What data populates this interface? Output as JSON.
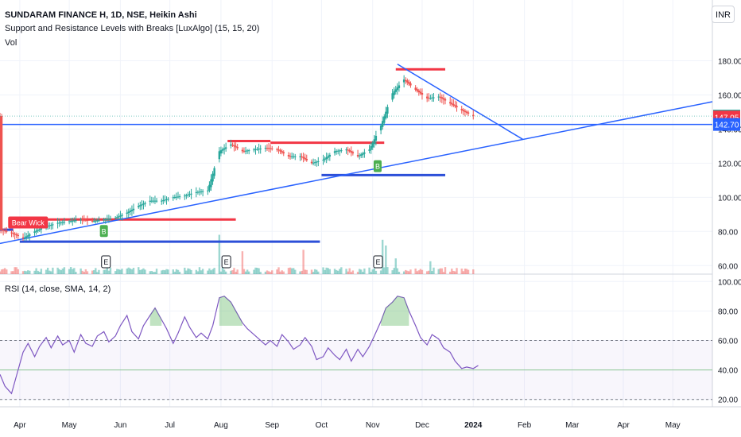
{
  "header": {
    "title": "SUNDARAM FINANCE H, 1D, NSE, Heikin Ashi",
    "indicator": "Support and Resistance Levels with Breaks [LuxAlgo] (15, 15, 20)",
    "volume": "Vol",
    "currency": "INR"
  },
  "rsi_panel": {
    "label": "RSI (14, close, SMA, 14, 2)"
  },
  "colors": {
    "up": "#26a69a",
    "down": "#ef5350",
    "trend": "#2962ff",
    "resistance": "#f23645",
    "support": "#2c4fd8",
    "rsi": "#7e57c2"
  },
  "chart_data": [
    {
      "type": "candlestick",
      "title": "SUNDARAM FINANCE H, 1D, NSE, Heikin Ashi",
      "ylim": [
        55,
        190
      ],
      "xlim": [
        "2023-03-20",
        "2024-05-25"
      ],
      "y_ticks": [
        "60.00",
        "80.00",
        "100.00",
        "120.00",
        "140.00",
        "160.00",
        "180.00"
      ],
      "x_ticks": [
        {
          "date": "2023-04-01",
          "label": "Apr"
        },
        {
          "date": "2023-05-01",
          "label": "May"
        },
        {
          "date": "2023-06-01",
          "label": "Jun"
        },
        {
          "date": "2023-07-01",
          "label": "Jul"
        },
        {
          "date": "2023-08-01",
          "label": "Aug"
        },
        {
          "date": "2023-09-01",
          "label": "Sep"
        },
        {
          "date": "2023-10-01",
          "label": "Oct"
        },
        {
          "date": "2023-11-01",
          "label": "Nov"
        },
        {
          "date": "2023-12-01",
          "label": "Dec"
        },
        {
          "date": "2024-01-01",
          "label": "2024"
        },
        {
          "date": "2024-02-01",
          "label": "Feb"
        },
        {
          "date": "2024-03-01",
          "label": "Mar"
        },
        {
          "date": "2024-04-01",
          "label": "Apr"
        },
        {
          "date": "2024-05-01",
          "label": "May"
        }
      ],
      "price_path": [
        [
          "2023-03-20",
          81
        ],
        [
          "2023-03-27",
          79
        ],
        [
          "2023-04-03",
          76
        ],
        [
          "2023-04-10",
          80
        ],
        [
          "2023-04-17",
          83
        ],
        [
          "2023-04-24",
          85
        ],
        [
          "2023-05-01",
          86
        ],
        [
          "2023-05-08",
          87
        ],
        [
          "2023-05-15",
          86
        ],
        [
          "2023-05-22",
          87
        ],
        [
          "2023-05-29",
          88
        ],
        [
          "2023-06-05",
          91
        ],
        [
          "2023-06-12",
          95
        ],
        [
          "2023-06-19",
          98
        ],
        [
          "2023-06-26",
          98
        ],
        [
          "2023-07-03",
          100
        ],
        [
          "2023-07-10",
          101
        ],
        [
          "2023-07-17",
          103
        ],
        [
          "2023-07-24",
          104
        ],
        [
          "2023-07-31",
          127
        ],
        [
          "2023-08-07",
          131
        ],
        [
          "2023-08-14",
          127
        ],
        [
          "2023-08-21",
          128
        ],
        [
          "2023-08-28",
          129
        ],
        [
          "2023-09-04",
          128
        ],
        [
          "2023-09-11",
          124
        ],
        [
          "2023-09-18",
          124
        ],
        [
          "2023-09-25",
          120
        ],
        [
          "2023-10-02",
          122
        ],
        [
          "2023-10-09",
          127
        ],
        [
          "2023-10-16",
          128
        ],
        [
          "2023-10-23",
          124
        ],
        [
          "2023-10-30",
          128
        ],
        [
          "2023-11-06",
          142
        ],
        [
          "2023-11-13",
          161
        ],
        [
          "2023-11-20",
          169
        ],
        [
          "2023-11-27",
          163
        ],
        [
          "2023-12-04",
          158
        ],
        [
          "2023-12-11",
          159
        ],
        [
          "2023-12-18",
          155
        ],
        [
          "2023-12-25",
          151
        ],
        [
          "2024-01-01",
          147.6
        ]
      ],
      "last_price": {
        "value": 147.6,
        "label": "147.60"
      },
      "price_tags": [
        {
          "value": 147.05,
          "label": "147.05"
        },
        {
          "value": 142.7,
          "label": "142.70"
        }
      ],
      "resistance_levels": [
        {
          "start": "2023-04-01",
          "end": "2023-08-10",
          "value": 87
        },
        {
          "start": "2023-08-05",
          "end": "2023-08-31",
          "value": 133
        },
        {
          "start": "2023-08-31",
          "end": "2023-11-08",
          "value": 132
        },
        {
          "start": "2023-11-15",
          "end": "2023-12-15",
          "value": 175
        }
      ],
      "support_levels": [
        {
          "start": "2023-03-20",
          "end": "2023-03-28",
          "value": 81
        },
        {
          "start": "2023-04-01",
          "end": "2023-09-30",
          "value": 74
        },
        {
          "start": "2023-10-01",
          "end": "2023-12-15",
          "value": 113
        }
      ],
      "trend_lines": [
        {
          "from": [
            "2023-03-20",
            73
          ],
          "to": [
            "2024-05-25",
            156
          ]
        },
        {
          "from": [
            "2023-11-16",
            178
          ],
          "to": [
            "2024-01-31",
            134
          ]
        },
        {
          "from": [
            "2023-03-20",
            142.7
          ],
          "to": [
            "2024-05-25",
            142.7
          ]
        }
      ],
      "markers": [
        {
          "date": "2023-04-06",
          "value": 85,
          "label": "Bear Wick",
          "color": "#f23645"
        },
        {
          "date": "2023-05-22",
          "value": 80,
          "label": "B",
          "color": "#4caf50"
        },
        {
          "date": "2023-11-04",
          "value": 118,
          "label": "B",
          "color": "#4caf50"
        }
      ],
      "earnings": [
        {
          "date": "2023-05-23",
          "label": "E"
        },
        {
          "date": "2023-08-04",
          "label": "E"
        },
        {
          "date": "2023-11-04",
          "label": "E"
        }
      ],
      "volume_spikes": [
        {
          "date": "2023-07-30",
          "value": 1.0
        },
        {
          "date": "2023-07-31",
          "value": 0.55
        },
        {
          "date": "2023-11-05",
          "value": 0.52
        },
        {
          "date": "2023-11-07",
          "value": 0.48
        },
        {
          "date": "2023-11-09",
          "value": 0.4
        },
        {
          "date": "2023-08-14",
          "value": 0.32
        },
        {
          "date": "2023-09-20",
          "value": 0.34
        },
        {
          "date": "2023-11-15",
          "value": 0.22
        },
        {
          "date": "2023-12-06",
          "value": 0.18
        }
      ]
    },
    {
      "type": "line",
      "title": "RSI (14, close, SMA, 14, 2)",
      "ylim": [
        15,
        105
      ],
      "y_ticks": [
        "20.00",
        "40.00",
        "60.00",
        "80.00",
        "100.00"
      ],
      "bands": {
        "upper": 60,
        "lower": 20,
        "overbought": 70,
        "mid": 40
      },
      "values": [
        [
          "2023-03-20",
          37
        ],
        [
          "2023-03-23",
          29
        ],
        [
          "2023-03-27",
          24
        ],
        [
          "2023-03-30",
          36
        ],
        [
          "2023-04-03",
          52
        ],
        [
          "2023-04-06",
          58
        ],
        [
          "2023-04-10",
          49
        ],
        [
          "2023-04-13",
          56
        ],
        [
          "2023-04-17",
          62
        ],
        [
          "2023-04-20",
          55
        ],
        [
          "2023-04-24",
          63
        ],
        [
          "2023-04-27",
          57
        ],
        [
          "2023-05-01",
          60
        ],
        [
          "2023-05-04",
          52
        ],
        [
          "2023-05-08",
          64
        ],
        [
          "2023-05-11",
          58
        ],
        [
          "2023-05-15",
          56
        ],
        [
          "2023-05-18",
          63
        ],
        [
          "2023-05-22",
          66
        ],
        [
          "2023-05-25",
          59
        ],
        [
          "2023-05-29",
          63
        ],
        [
          "2023-06-01",
          70
        ],
        [
          "2023-06-05",
          77
        ],
        [
          "2023-06-08",
          66
        ],
        [
          "2023-06-12",
          61
        ],
        [
          "2023-06-15",
          70
        ],
        [
          "2023-06-19",
          77
        ],
        [
          "2023-06-22",
          82
        ],
        [
          "2023-06-26",
          74
        ],
        [
          "2023-06-29",
          68
        ],
        [
          "2023-07-03",
          58
        ],
        [
          "2023-07-06",
          65
        ],
        [
          "2023-07-10",
          76
        ],
        [
          "2023-07-13",
          69
        ],
        [
          "2023-07-17",
          62
        ],
        [
          "2023-07-20",
          65
        ],
        [
          "2023-07-24",
          61
        ],
        [
          "2023-07-27",
          70
        ],
        [
          "2023-07-31",
          89
        ],
        [
          "2023-08-03",
          90
        ],
        [
          "2023-08-07",
          86
        ],
        [
          "2023-08-10",
          80
        ],
        [
          "2023-08-14",
          72
        ],
        [
          "2023-08-17",
          68
        ],
        [
          "2023-08-21",
          64
        ],
        [
          "2023-08-24",
          61
        ],
        [
          "2023-08-28",
          57
        ],
        [
          "2023-08-31",
          60
        ],
        [
          "2023-09-04",
          56
        ],
        [
          "2023-09-07",
          64
        ],
        [
          "2023-09-11",
          59
        ],
        [
          "2023-09-14",
          54
        ],
        [
          "2023-09-18",
          57
        ],
        [
          "2023-09-21",
          62
        ],
        [
          "2023-09-25",
          56
        ],
        [
          "2023-09-28",
          47
        ],
        [
          "2023-10-02",
          49
        ],
        [
          "2023-10-05",
          55
        ],
        [
          "2023-10-09",
          50
        ],
        [
          "2023-10-12",
          47
        ],
        [
          "2023-10-16",
          54
        ],
        [
          "2023-10-19",
          46
        ],
        [
          "2023-10-23",
          54
        ],
        [
          "2023-10-26",
          49
        ],
        [
          "2023-10-30",
          56
        ],
        [
          "2023-11-02",
          63
        ],
        [
          "2023-11-06",
          73
        ],
        [
          "2023-11-09",
          82
        ],
        [
          "2023-11-13",
          86
        ],
        [
          "2023-11-16",
          90
        ],
        [
          "2023-11-20",
          89
        ],
        [
          "2023-11-23",
          80
        ],
        [
          "2023-11-27",
          70
        ],
        [
          "2023-11-30",
          62
        ],
        [
          "2023-12-04",
          57
        ],
        [
          "2023-12-07",
          64
        ],
        [
          "2023-12-11",
          61
        ],
        [
          "2023-12-14",
          55
        ],
        [
          "2023-12-18",
          52
        ],
        [
          "2023-12-21",
          46
        ],
        [
          "2023-12-25",
          41
        ],
        [
          "2023-12-28",
          42
        ],
        [
          "2024-01-01",
          41
        ],
        [
          "2024-01-04",
          43
        ]
      ]
    }
  ]
}
